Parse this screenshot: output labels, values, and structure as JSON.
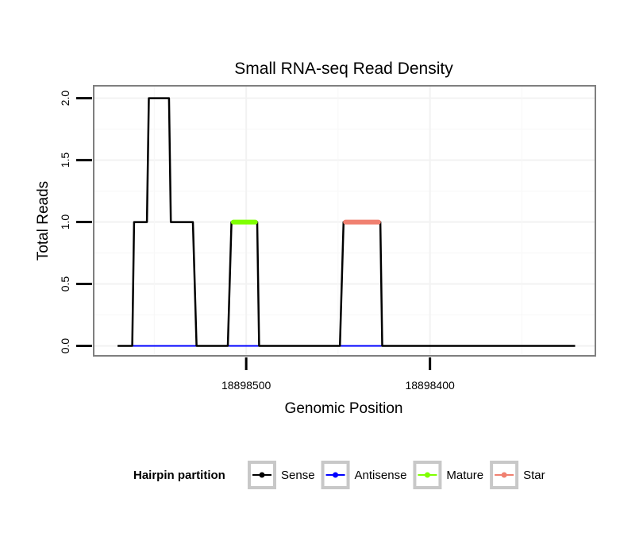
{
  "chart_data": {
    "type": "line",
    "title": "Small RNA-seq Read Density",
    "xlabel": "Genomic Position",
    "ylabel": "Total Reads",
    "ylim": [
      -0.08,
      2.1
    ],
    "xlim": [
      18898583,
      18898310
    ],
    "x_reversed": true,
    "yticks": [
      0.0,
      0.5,
      1.0,
      1.5,
      2.0
    ],
    "ytick_labels": [
      "0.0",
      "0.5",
      "1.0",
      "1.5",
      "2.0"
    ],
    "xticks": [
      18898500,
      18898400
    ],
    "xtick_labels": [
      "18898500",
      "18898400"
    ],
    "grid": true,
    "legend_position": "bottom",
    "legend_title": "Hairpin partition",
    "series": [
      {
        "name": "Sense",
        "color": "#000000",
        "x": [
          18898570,
          18898562,
          18898561,
          18898554,
          18898553,
          18898542,
          18898541,
          18898529,
          18898527,
          18898510,
          18898508,
          18898494,
          18898493,
          18898449,
          18898447,
          18898427,
          18898426,
          18898321
        ],
        "y": [
          0,
          0,
          1,
          1,
          2,
          2,
          1,
          1,
          0,
          0,
          1,
          1,
          0,
          0,
          1,
          1,
          0,
          0
        ]
      },
      {
        "name": "Antisense",
        "color": "#0000ff",
        "x": [
          18898562,
          18898527,
          18898510,
          18898494,
          18898449,
          18898426
        ],
        "y": [
          0,
          0,
          0,
          0,
          0,
          0
        ]
      },
      {
        "name": "Mature",
        "color": "#7fff00",
        "x": [
          18898507,
          18898495
        ],
        "y": [
          1,
          1
        ]
      },
      {
        "name": "Star",
        "color": "#f08070",
        "x": [
          18898446,
          18898428
        ],
        "y": [
          1,
          1
        ]
      }
    ]
  }
}
